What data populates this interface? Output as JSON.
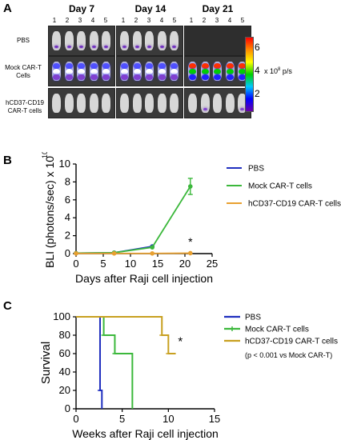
{
  "panel_a": {
    "letter": "A",
    "days": [
      "Day 7",
      "Day 14",
      "Day 21"
    ],
    "mouse_numbers": [
      "1",
      "2",
      "3",
      "4",
      "5"
    ],
    "row_labels": [
      [
        "PBS"
      ],
      [
        "Mock CAR-T",
        "Cells"
      ],
      [
        "hCD37-CD19",
        "CAR-T cells"
      ]
    ],
    "colorbar": {
      "ticks": [
        "6",
        "4",
        "2"
      ],
      "unit_label": "x 10",
      "unit_exp": "8",
      "unit_suffix": " p/s",
      "colors": [
        "#ff0000",
        "#ff8c00",
        "#ffff00",
        "#00d000",
        "#00c8ff",
        "#0000ff",
        "#6a00a8"
      ]
    }
  },
  "panel_b": {
    "letter": "B",
    "chart_data": {
      "type": "line",
      "xlabel": "Days after  Raji cell injection",
      "ylabel": "BLI (photons/sec) x 10",
      "ylabel_exp": "10",
      "xlim": [
        0,
        25
      ],
      "ylim": [
        0,
        10
      ],
      "xticks": [
        0,
        5,
        10,
        15,
        20,
        25
      ],
      "yticks": [
        0,
        2,
        4,
        6,
        8,
        10
      ],
      "legend_position": "right",
      "series": [
        {
          "name": "PBS",
          "color": "#1f2fbf",
          "x": [
            0,
            7,
            14
          ],
          "y": [
            0.05,
            0.1,
            0.8
          ],
          "err": [
            0,
            0,
            0.1
          ]
        },
        {
          "name": "Mock CAR-T cells",
          "color": "#3cb83c",
          "x": [
            0,
            7,
            14,
            21
          ],
          "y": [
            0.05,
            0.1,
            0.7,
            7.5
          ],
          "err": [
            0,
            0,
            0.1,
            0.9
          ]
        },
        {
          "name": "hCD37-CD19 CAR-T cells",
          "color": "#e8a030",
          "x": [
            0,
            7,
            14,
            21
          ],
          "y": [
            0.02,
            0.02,
            0.02,
            0.05
          ],
          "err": [
            0,
            0,
            0,
            0
          ]
        }
      ],
      "annotation": {
        "text": "*",
        "x": 21,
        "y": 0.9
      }
    }
  },
  "panel_c": {
    "letter": "C",
    "chart_data": {
      "type": "line",
      "xlabel": "Weeks after  Raji cell injection",
      "ylabel": "Survival",
      "xlim": [
        0,
        15
      ],
      "ylim": [
        0,
        100
      ],
      "xticks": [
        0,
        5,
        10,
        15
      ],
      "yticks": [
        0,
        20,
        40,
        60,
        80,
        100
      ],
      "legend_position": "right",
      "series": [
        {
          "name": "PBS",
          "color": "#1f2fbf",
          "steps": [
            [
              0,
              100
            ],
            [
              2.6,
              100
            ],
            [
              2.6,
              20
            ],
            [
              2.8,
              20
            ],
            [
              2.8,
              0
            ]
          ]
        },
        {
          "name": "Mock CAR-T cells",
          "color": "#3cb83c",
          "steps": [
            [
              0,
              100
            ],
            [
              3.0,
              100
            ],
            [
              3.0,
              80
            ],
            [
              4.2,
              80
            ],
            [
              4.2,
              60
            ],
            [
              6.1,
              60
            ],
            [
              6.1,
              0
            ]
          ]
        },
        {
          "name": "hCD37-CD19 CAR-T cells",
          "color": "#c8a020",
          "steps": [
            [
              0,
              100
            ],
            [
              9.3,
              100
            ],
            [
              9.3,
              80
            ],
            [
              10.0,
              80
            ],
            [
              10.0,
              60
            ],
            [
              10.8,
              60
            ]
          ]
        }
      ],
      "annotation": {
        "text": "*",
        "x": 11.3,
        "y": 69
      },
      "note": "(p < 0.001 vs Mock CAR-T)"
    }
  }
}
